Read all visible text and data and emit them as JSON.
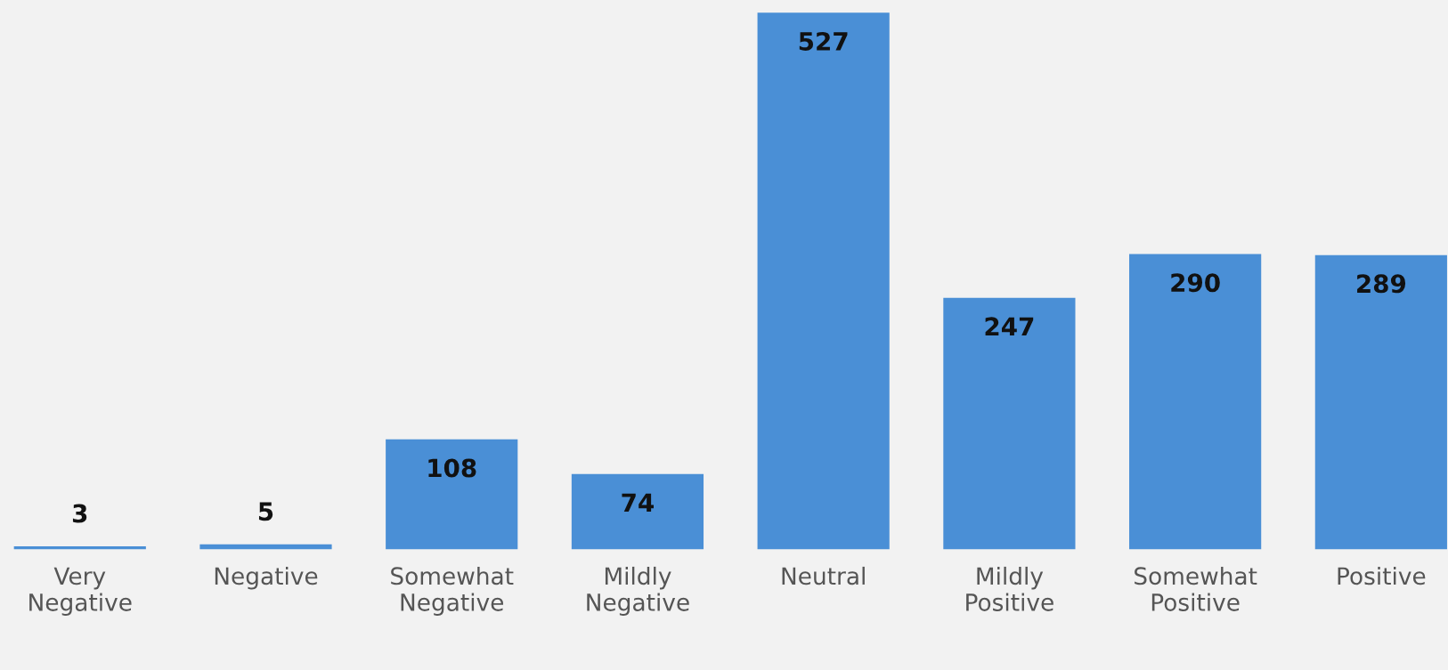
{
  "chart_data": {
    "type": "bar",
    "categories": [
      "Very\nNegative",
      "Negative",
      "Somewhat\nNegative",
      "Mildly\nNegative",
      "Neutral",
      "Mildly\nPositive",
      "Somewhat\nPositive",
      "Positive"
    ],
    "values": [
      3,
      5,
      108,
      74,
      527,
      247,
      290,
      289
    ],
    "color": "#4a8fd6",
    "data_labels": true,
    "grid": false,
    "legend": false
  }
}
